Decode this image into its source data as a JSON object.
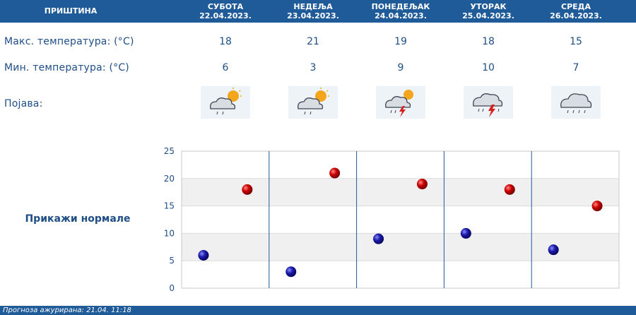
{
  "header": {
    "city": "ПРИШТИНА",
    "days": [
      {
        "name": "СУБОТА",
        "date": "22.04.2023."
      },
      {
        "name": "НЕДЕЉА",
        "date": "23.04.2023."
      },
      {
        "name": "ПОНЕДЕЉАК",
        "date": "24.04.2023."
      },
      {
        "name": "УТОРАК",
        "date": "25.04.2023."
      },
      {
        "name": "СРЕДА",
        "date": "26.04.2023."
      }
    ]
  },
  "rows": {
    "max_label": "Макс. температура: (°C)",
    "min_label": "Мин. температура: (°C)",
    "weather_label": "Појава:",
    "max_values": [
      "18",
      "21",
      "19",
      "18",
      "15"
    ],
    "min_values": [
      "6",
      "3",
      "9",
      "10",
      "7"
    ],
    "icons": [
      "partly-cloudy-rain-icon",
      "partly-cloudy-rain-icon",
      "thunderstorm-sun-icon",
      "thunderstorm-icon",
      "rain-cloud-icon"
    ]
  },
  "normals_button": "Прикажи нормале",
  "footer": "Прогноза ажурирана: 21.04. 11:18",
  "colors": {
    "accent": "#1f5a99",
    "text": "#1f4e87",
    "max_point": "#cc0000",
    "min_point": "#1a1aa8"
  },
  "chart_data": {
    "type": "scatter",
    "categories": [
      "СУБОТА",
      "НЕДЕЉА",
      "ПОНЕДЕЉАК",
      "УТОРАК",
      "СРЕДА"
    ],
    "series": [
      {
        "values": [
          18,
          21,
          19,
          18,
          15
        ]
      },
      {
        "values": [
          6,
          3,
          9,
          10,
          7
        ]
      }
    ],
    "yticks": [
      "0",
      "5",
      "10",
      "15",
      "20",
      "25"
    ],
    "ylim": [
      0,
      25
    ],
    "grid": true
  }
}
